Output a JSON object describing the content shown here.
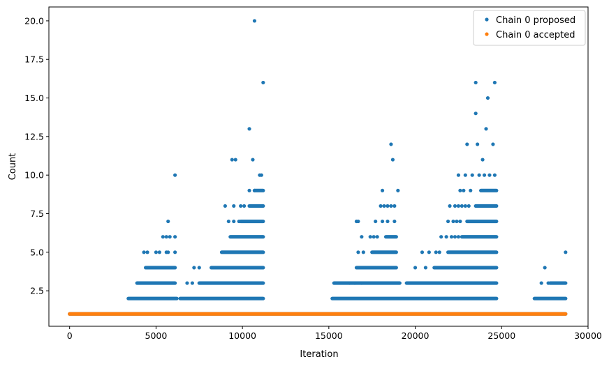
{
  "chart_data": {
    "type": "scatter",
    "title": "",
    "xlabel": "Iteration",
    "ylabel": "Count",
    "xlim": [
      -1200,
      30000
    ],
    "ylim": [
      0.2,
      20.9
    ],
    "x_ticks": [
      0,
      5000,
      10000,
      15000,
      20000,
      25000,
      30000
    ],
    "x_tick_labels": [
      "0",
      "5000",
      "10000",
      "15000",
      "20000",
      "25000",
      "30000"
    ],
    "y_ticks": [
      2.5,
      5.0,
      7.5,
      10.0,
      12.5,
      15.0,
      17.5,
      20.0
    ],
    "y_tick_labels": [
      "2.5",
      "5.0",
      "7.5",
      "10.0",
      "12.5",
      "15.0",
      "17.5",
      "20.0"
    ],
    "grid": false,
    "legend_position": "top-right",
    "series": [
      {
        "name": "Chain 0 proposed",
        "color": "#1f77b4",
        "marker": "circle",
        "dense_bands": [
          {
            "y": 1,
            "x_start": 0,
            "x_end": 28700
          },
          {
            "y": 2,
            "x_start": 3400,
            "x_end": 6200
          },
          {
            "y": 2,
            "x_start": 6400,
            "x_end": 11200
          },
          {
            "y": 2,
            "x_start": 15200,
            "x_end": 24700
          },
          {
            "y": 2,
            "x_start": 26900,
            "x_end": 28700
          },
          {
            "y": 3,
            "x_start": 3900,
            "x_end": 6100
          },
          {
            "y": 3,
            "x_start": 7500,
            "x_end": 11200
          },
          {
            "y": 3,
            "x_start": 15300,
            "x_end": 19100
          },
          {
            "y": 3,
            "x_start": 19500,
            "x_end": 24700
          },
          {
            "y": 3,
            "x_start": 27800,
            "x_end": 28700
          },
          {
            "y": 4,
            "x_start": 4400,
            "x_end": 6100
          },
          {
            "y": 4,
            "x_start": 8200,
            "x_end": 11200
          },
          {
            "y": 4,
            "x_start": 16600,
            "x_end": 18900
          },
          {
            "y": 4,
            "x_start": 21100,
            "x_end": 24700
          },
          {
            "y": 5,
            "x_start": 8800,
            "x_end": 11200
          },
          {
            "y": 5,
            "x_start": 17500,
            "x_end": 18900
          },
          {
            "y": 5,
            "x_start": 21900,
            "x_end": 24700
          },
          {
            "y": 6,
            "x_start": 9300,
            "x_end": 11200
          },
          {
            "y": 6,
            "x_start": 18300,
            "x_end": 18900
          },
          {
            "y": 6,
            "x_start": 22700,
            "x_end": 24700
          },
          {
            "y": 7,
            "x_start": 9900,
            "x_end": 11200
          },
          {
            "y": 7,
            "x_start": 23000,
            "x_end": 24700
          },
          {
            "y": 8,
            "x_start": 10400,
            "x_end": 11200
          },
          {
            "y": 8,
            "x_start": 23500,
            "x_end": 24700
          },
          {
            "y": 9,
            "x_start": 10700,
            "x_end": 11200
          },
          {
            "y": 9,
            "x_start": 23800,
            "x_end": 24700
          }
        ],
        "points": [
          [
            4300,
            5
          ],
          [
            4500,
            5
          ],
          [
            5000,
            5
          ],
          [
            5200,
            5
          ],
          [
            5600,
            5
          ],
          [
            5700,
            5
          ],
          [
            6100,
            5
          ],
          [
            5400,
            6
          ],
          [
            5600,
            6
          ],
          [
            5800,
            6
          ],
          [
            6100,
            6
          ],
          [
            5700,
            7
          ],
          [
            6100,
            10
          ],
          [
            7200,
            4
          ],
          [
            7500,
            4
          ],
          [
            6800,
            3
          ],
          [
            7100,
            3
          ],
          [
            9000,
            8
          ],
          [
            9500,
            8
          ],
          [
            9900,
            8
          ],
          [
            10100,
            8
          ],
          [
            9200,
            7
          ],
          [
            9500,
            7
          ],
          [
            9800,
            7
          ],
          [
            9400,
            11
          ],
          [
            9600,
            11
          ],
          [
            10400,
            13
          ],
          [
            10600,
            11
          ],
          [
            10700,
            20
          ],
          [
            11000,
            10
          ],
          [
            11100,
            10
          ],
          [
            11200,
            16
          ],
          [
            10400,
            9
          ],
          [
            10700,
            9
          ],
          [
            16600,
            7
          ],
          [
            16700,
            7
          ],
          [
            16900,
            6
          ],
          [
            16700,
            5
          ],
          [
            17000,
            5
          ],
          [
            16200,
            3
          ],
          [
            16500,
            3
          ],
          [
            16900,
            3
          ],
          [
            17400,
            6
          ],
          [
            17600,
            6
          ],
          [
            17800,
            6
          ],
          [
            17700,
            7
          ],
          [
            18100,
            7
          ],
          [
            18000,
            8
          ],
          [
            18200,
            8
          ],
          [
            18400,
            8
          ],
          [
            18600,
            8
          ],
          [
            18800,
            8
          ],
          [
            18100,
            9
          ],
          [
            18600,
            12
          ],
          [
            18700,
            11
          ],
          [
            19000,
            9
          ],
          [
            18400,
            7
          ],
          [
            18800,
            7
          ],
          [
            20000,
            4
          ],
          [
            20400,
            5
          ],
          [
            20600,
            4
          ],
          [
            20800,
            5
          ],
          [
            21200,
            5
          ],
          [
            21400,
            5
          ],
          [
            21500,
            6
          ],
          [
            21800,
            6
          ],
          [
            22100,
            6
          ],
          [
            22300,
            6
          ],
          [
            22500,
            6
          ],
          [
            21900,
            7
          ],
          [
            22200,
            7
          ],
          [
            22400,
            7
          ],
          [
            22600,
            7
          ],
          [
            22000,
            8
          ],
          [
            22300,
            8
          ],
          [
            22500,
            8
          ],
          [
            22700,
            8
          ],
          [
            22900,
            8
          ],
          [
            22500,
            10
          ],
          [
            22600,
            9
          ],
          [
            22800,
            9
          ],
          [
            22900,
            10
          ],
          [
            23100,
            8
          ],
          [
            23300,
            10
          ],
          [
            23000,
            12
          ],
          [
            23200,
            9
          ],
          [
            23500,
            14
          ],
          [
            23500,
            16
          ],
          [
            23600,
            12
          ],
          [
            23700,
            10
          ],
          [
            23900,
            11
          ],
          [
            24000,
            10
          ],
          [
            24100,
            13
          ],
          [
            24200,
            15
          ],
          [
            24300,
            10
          ],
          [
            24500,
            12
          ],
          [
            24600,
            16
          ],
          [
            24600,
            10
          ],
          [
            27500,
            4
          ],
          [
            28700,
            5
          ],
          [
            27300,
            3
          ],
          [
            27700,
            3
          ]
        ]
      },
      {
        "name": "Chain 0 accepted",
        "color": "#ff7f0e",
        "marker": "circle",
        "dense_bands": [
          {
            "y": 1,
            "x_start": 0,
            "x_end": 28700
          }
        ],
        "points": []
      }
    ]
  }
}
